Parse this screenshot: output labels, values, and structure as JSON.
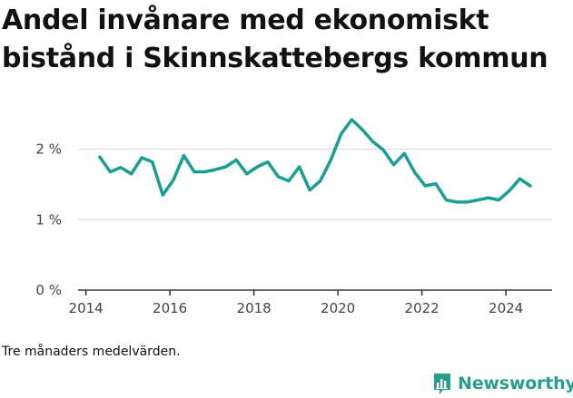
{
  "chart_data": {
    "type": "line",
    "title": "Andel invånare med ekonomiskt bistånd i Skinnskattebergs kommun",
    "note": "Tre månaders medelvärden.",
    "x_ticks": [
      "2014",
      "2016",
      "2018",
      "2020",
      "2022",
      "2024"
    ],
    "y_ticks": [
      "0 %",
      "1 %",
      "2 %"
    ],
    "ylim": [
      0,
      2.6
    ],
    "xlim": [
      2013.9,
      2025.1
    ],
    "grid": true,
    "line_color": "#1a9e93",
    "series": [
      {
        "x": [
          2014.33,
          2014.58,
          2014.83,
          2015.08,
          2015.33,
          2015.58,
          2015.83,
          2016.08,
          2016.33,
          2016.58,
          2016.83,
          2017.08,
          2017.33,
          2017.58,
          2017.83,
          2018.08,
          2018.33,
          2018.58,
          2018.83,
          2019.08,
          2019.33,
          2019.58,
          2019.83,
          2020.08,
          2020.33,
          2020.58,
          2020.83,
          2021.08,
          2021.33,
          2021.58,
          2021.83,
          2022.08,
          2022.33,
          2022.58,
          2022.83,
          2023.08,
          2023.33,
          2023.58,
          2023.83,
          2024.08,
          2024.33,
          2024.58
        ],
        "y": [
          1.89,
          1.68,
          1.74,
          1.65,
          1.88,
          1.82,
          1.35,
          1.56,
          1.91,
          1.68,
          1.68,
          1.71,
          1.75,
          1.85,
          1.65,
          1.75,
          1.82,
          1.61,
          1.55,
          1.75,
          1.42,
          1.55,
          1.85,
          2.22,
          2.42,
          2.28,
          2.11,
          1.99,
          1.78,
          1.94,
          1.67,
          1.48,
          1.51,
          1.28,
          1.25,
          1.25,
          1.28,
          1.31,
          1.28,
          1.41,
          1.58,
          1.48
        ]
      }
    ]
  },
  "brand": {
    "name": "Newsworthy",
    "color": "#2a9d8f",
    "icon": "bar-chart-icon"
  }
}
